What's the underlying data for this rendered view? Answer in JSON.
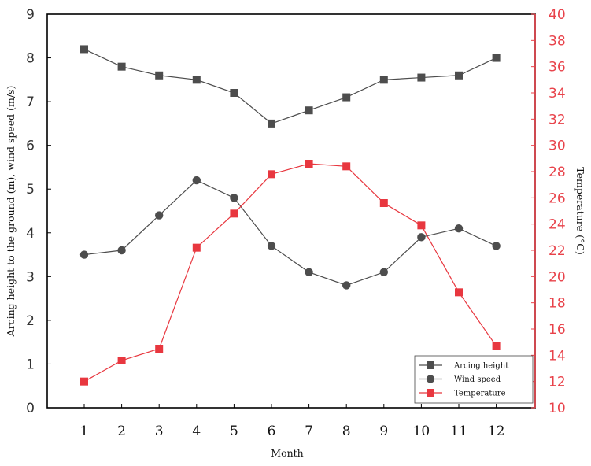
{
  "chart_data": {
    "type": "line",
    "x": [
      1,
      2,
      3,
      4,
      5,
      6,
      7,
      8,
      9,
      10,
      11,
      12
    ],
    "xlabel": "Month",
    "ylabel_left": "Arcing height to the ground (m), wind speed (m/s)",
    "ylabel_right": "Temperature (°C)",
    "ylim_left": [
      0,
      9
    ],
    "ylim_right": [
      10,
      40
    ],
    "yticks_left": [
      0,
      1,
      2,
      3,
      4,
      5,
      6,
      7,
      8,
      9
    ],
    "yticks_right": [
      10,
      12,
      14,
      16,
      18,
      20,
      22,
      24,
      26,
      28,
      30,
      32,
      34,
      36,
      38,
      40
    ],
    "grid": false,
    "legend_position": "bottom-right",
    "series": [
      {
        "name": "Arcing height",
        "axis": "left",
        "marker": "square",
        "color": "#4d4d4d",
        "values": [
          8.2,
          7.8,
          7.6,
          7.5,
          7.2,
          6.5,
          6.8,
          7.1,
          7.5,
          7.55,
          7.6,
          8.0
        ]
      },
      {
        "name": "Wind speed",
        "axis": "left",
        "marker": "circle",
        "color": "#4d4d4d",
        "values": [
          3.5,
          3.6,
          4.4,
          5.2,
          4.8,
          3.7,
          3.1,
          2.8,
          3.1,
          3.9,
          4.1,
          3.7
        ]
      },
      {
        "name": "Temperature",
        "axis": "right",
        "marker": "square",
        "color": "#e8373f",
        "values": [
          12.0,
          13.6,
          14.5,
          22.2,
          24.8,
          27.8,
          28.6,
          28.4,
          25.6,
          23.9,
          18.8,
          14.7
        ]
      }
    ]
  }
}
